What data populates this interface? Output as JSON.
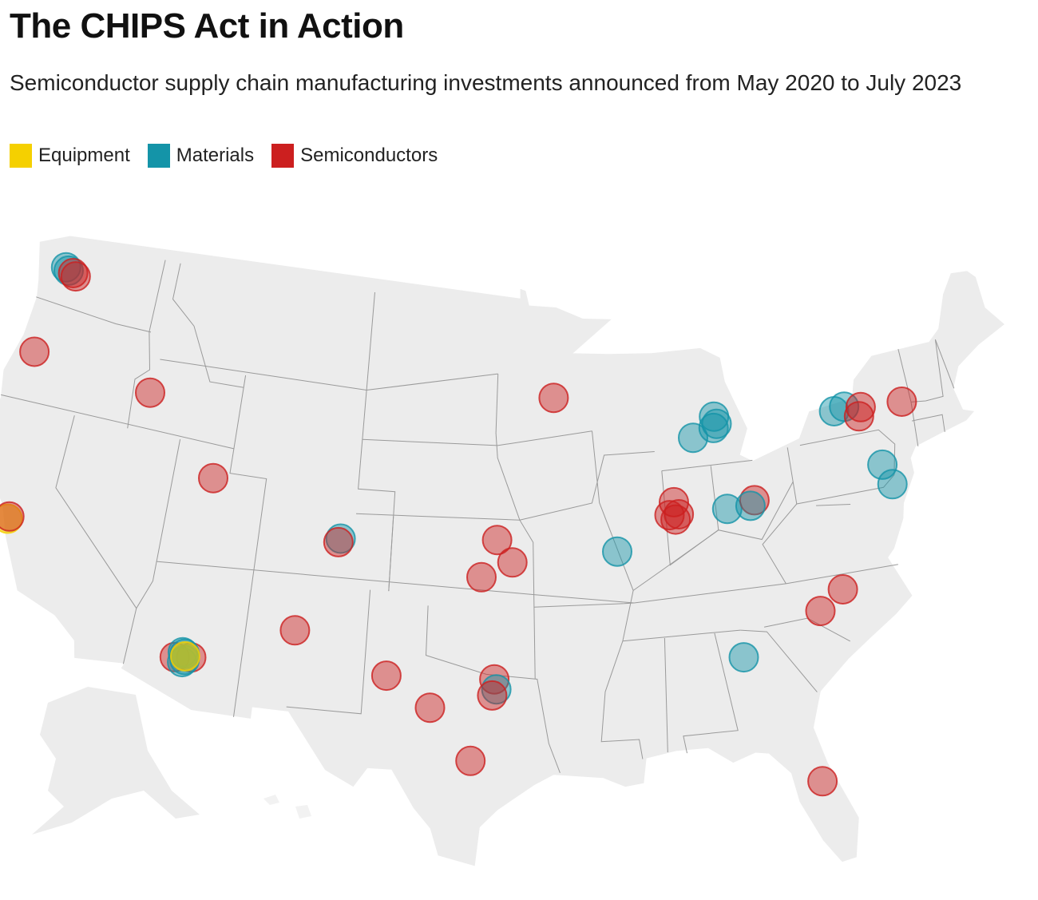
{
  "title": "The CHIPS Act in Action",
  "subtitle": "Semiconductor supply chain manufacturing investments announced from May 2020 to July 2023",
  "legend": [
    {
      "label": "Equipment",
      "color": "#f5d000"
    },
    {
      "label": "Materials",
      "color": "#1494a8"
    },
    {
      "label": "Semiconductors",
      "color": "#cc1f1f"
    }
  ],
  "markers": [
    {
      "cat": "Materials",
      "lon": -122.7,
      "lat": 47.7
    },
    {
      "cat": "Materials",
      "lon": -122.5,
      "lat": 47.6
    },
    {
      "cat": "Semiconductors",
      "lon": -122.2,
      "lat": 47.55
    },
    {
      "cat": "Semiconductors",
      "lon": -122.0,
      "lat": 47.45
    },
    {
      "cat": "Semiconductors",
      "lon": -123.1,
      "lat": 44.05
    },
    {
      "cat": "Semiconductors",
      "lon": -116.2,
      "lat": 43.6
    },
    {
      "cat": "Semiconductors",
      "lon": -111.9,
      "lat": 40.7
    },
    {
      "cat": "Equipment",
      "lon": -122.0,
      "lat": 37.3
    },
    {
      "cat": "Semiconductors",
      "lon": -121.95,
      "lat": 37.4
    },
    {
      "cat": "Materials",
      "lon": -104.75,
      "lat": 38.95
    },
    {
      "cat": "Semiconductors",
      "lon": -104.85,
      "lat": 38.8
    },
    {
      "cat": "Semiconductors",
      "lon": -106.6,
      "lat": 35.1
    },
    {
      "cat": "Semiconductors",
      "lon": -112.3,
      "lat": 33.35
    },
    {
      "cat": "Semiconductors",
      "lon": -111.5,
      "lat": 33.45
    },
    {
      "cat": "Materials",
      "lon": -111.95,
      "lat": 33.6
    },
    {
      "cat": "Materials",
      "lon": -111.85,
      "lat": 33.55
    },
    {
      "cat": "Materials",
      "lon": -111.9,
      "lat": 33.2
    },
    {
      "cat": "Materials",
      "lon": -111.8,
      "lat": 33.3
    },
    {
      "cat": "Equipment",
      "lon": -111.8,
      "lat": 33.45
    },
    {
      "cat": "Semiconductors",
      "lon": -101.9,
      "lat": 33.6
    },
    {
      "cat": "Semiconductors",
      "lon": -99.7,
      "lat": 32.4
    },
    {
      "cat": "Semiconductors",
      "lon": -97.7,
      "lat": 30.3
    },
    {
      "cat": "Semiconductors",
      "lon": -96.6,
      "lat": 33.6
    },
    {
      "cat": "Materials",
      "lon": -96.5,
      "lat": 33.2
    },
    {
      "cat": "Semiconductors",
      "lon": -96.7,
      "lat": 32.95
    },
    {
      "cat": "Semiconductors",
      "lon": -96.5,
      "lat": 39.2
    },
    {
      "cat": "Semiconductors",
      "lon": -95.7,
      "lat": 38.3
    },
    {
      "cat": "Semiconductors",
      "lon": -97.3,
      "lat": 37.7
    },
    {
      "cat": "Semiconductors",
      "lon": -93.3,
      "lat": 44.9
    },
    {
      "cat": "Materials",
      "lon": -90.2,
      "lat": 38.6
    },
    {
      "cat": "Semiconductors",
      "lon": -87.0,
      "lat": 40.4
    },
    {
      "cat": "Semiconductors",
      "lon": -87.3,
      "lat": 39.9
    },
    {
      "cat": "Semiconductors",
      "lon": -86.8,
      "lat": 39.9
    },
    {
      "cat": "Semiconductors",
      "lon": -87.0,
      "lat": 39.7
    },
    {
      "cat": "Materials",
      "lon": -84.3,
      "lat": 43.65
    },
    {
      "cat": "Materials",
      "lon": -84.2,
      "lat": 43.35
    },
    {
      "cat": "Materials",
      "lon": -84.4,
      "lat": 43.2
    },
    {
      "cat": "Materials",
      "lon": -85.6,
      "lat": 42.9
    },
    {
      "cat": "Materials",
      "lon": -84.2,
      "lat": 39.9
    },
    {
      "cat": "Semiconductors",
      "lon": -82.7,
      "lat": 40.1
    },
    {
      "cat": "Materials",
      "lon": -82.95,
      "lat": 39.9
    },
    {
      "cat": "Materials",
      "lon": -77.6,
      "lat": 43.1
    },
    {
      "cat": "Materials",
      "lon": -77.0,
      "lat": 43.2
    },
    {
      "cat": "Semiconductors",
      "lon": -76.1,
      "lat": 43.05
    },
    {
      "cat": "Semiconductors",
      "lon": -76.3,
      "lat": 42.7
    },
    {
      "cat": "Semiconductors",
      "lon": -73.8,
      "lat": 42.9
    },
    {
      "cat": "Materials",
      "lon": -75.6,
      "lat": 40.6
    },
    {
      "cat": "Materials",
      "lon": -75.3,
      "lat": 39.75
    },
    {
      "cat": "Semiconductors",
      "lon": -78.9,
      "lat": 36.0
    },
    {
      "cat": "Semiconductors",
      "lon": -80.2,
      "lat": 35.3
    },
    {
      "cat": "Materials",
      "lon": -84.3,
      "lat": 33.9
    },
    {
      "cat": "Semiconductors",
      "lon": -81.4,
      "lat": 28.5
    }
  ]
}
